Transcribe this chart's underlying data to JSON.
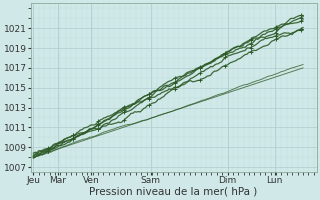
{
  "background_color": "#d0e8e8",
  "plot_bg_color": "#d0e8e8",
  "grid_major_color": "#b0cccc",
  "grid_minor_color": "#c0dcdc",
  "line_color": "#2d5a27",
  "ylim": [
    1006.5,
    1023.5
  ],
  "yticks": [
    1007,
    1009,
    1011,
    1013,
    1015,
    1017,
    1019,
    1021
  ],
  "xlabel": "Pression niveau de la mer( hPa )",
  "day_labels": [
    "Jeu",
    "Mar",
    "Ven",
    "Sam",
    "Dim",
    "Lun"
  ],
  "label_fontsize": 7.5,
  "tick_fontsize": 6.5
}
